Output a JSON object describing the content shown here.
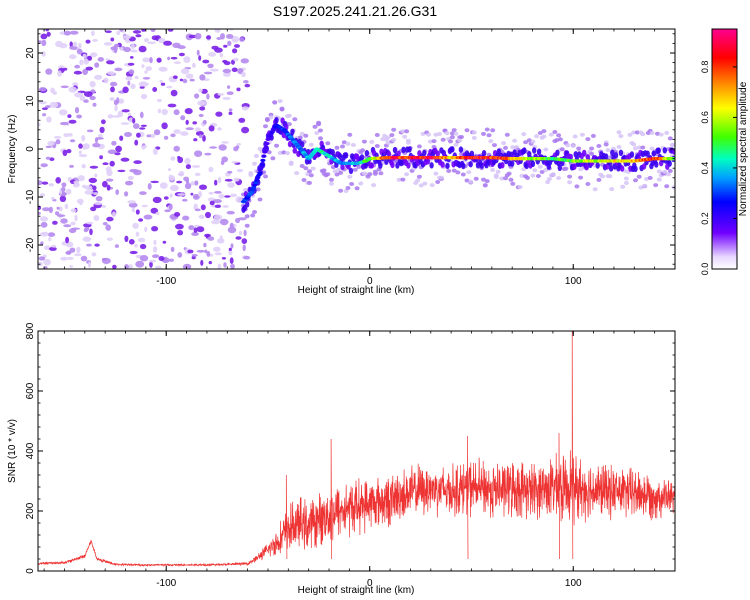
{
  "title": "S197.2025.241.21.26.G31",
  "chart_data": [
    {
      "type": "heatmap",
      "title": "S197.2025.241.21.26.G31",
      "xlabel": "Height of straight line (km)",
      "ylabel": "Frequency (Hz)",
      "xlim": [
        -163,
        150
      ],
      "ylim": [
        -25,
        25
      ],
      "x_ticks": [
        -100,
        0,
        100
      ],
      "y_ticks": [
        -20,
        -10,
        0,
        10,
        20
      ],
      "colorbar": {
        "label": "Normalized spectral amplitude",
        "range": [
          0,
          0.95
        ],
        "ticks": [
          0.0,
          0.2,
          0.4,
          0.6,
          0.8
        ],
        "colors": [
          "#ffffff",
          "#7000ff",
          "#0000ff",
          "#00c8ff",
          "#00ff80",
          "#80ff00",
          "#ffff00",
          "#ff8000",
          "#ff0000",
          "#ff00a0"
        ]
      },
      "noise_region_x": [
        -163,
        -60
      ],
      "ridge": {
        "x": [
          -62,
          -58,
          -54,
          -50,
          -46,
          -42,
          -38,
          -34,
          -30,
          -26,
          -22,
          -18,
          -14,
          -10,
          -6,
          -2,
          0,
          10,
          20,
          30,
          40,
          50,
          60,
          70,
          80,
          90,
          100,
          110,
          120,
          130,
          140,
          150
        ],
        "freq": [
          -11,
          -9,
          -5,
          2,
          5,
          4,
          2,
          0,
          -2,
          0,
          -1,
          -2,
          -3,
          -3,
          -3,
          -2.5,
          -2,
          -1.8,
          -1.8,
          -1.8,
          -1.8,
          -1.8,
          -1.8,
          -2,
          -2,
          -2,
          -2.5,
          -2.5,
          -2.5,
          -2.5,
          -2,
          -2
        ],
        "amplitude": [
          0.3,
          0.3,
          0.25,
          0.2,
          0.25,
          0.3,
          0.35,
          0.35,
          0.4,
          0.45,
          0.45,
          0.4,
          0.35,
          0.35,
          0.4,
          0.5,
          0.55,
          0.85,
          0.85,
          0.9,
          0.7,
          0.88,
          0.85,
          0.75,
          0.6,
          0.5,
          0.55,
          0.6,
          0.65,
          0.7,
          0.85,
          0.5
        ]
      }
    },
    {
      "type": "line",
      "xlabel": "Height of straight line (km)",
      "ylabel": "SNR (10 * v/v)",
      "xlim": [
        -163,
        150
      ],
      "ylim": [
        0,
        800
      ],
      "x_ticks": [
        -100,
        0,
        100
      ],
      "y_ticks": [
        0,
        200,
        400,
        600,
        800
      ],
      "color": "#ee3333",
      "series": [
        {
          "name": "SNR",
          "x": [
            -163,
            -150,
            -140,
            -137,
            -134,
            -125,
            -110,
            -90,
            -70,
            -60,
            -55,
            -50,
            -45,
            -40,
            -35,
            -30,
            -25,
            -20,
            -10,
            0,
            10,
            20,
            30,
            40,
            50,
            60,
            70,
            80,
            90,
            95,
            99,
            100,
            105,
            110,
            120,
            130,
            140,
            150
          ],
          "y": [
            25,
            28,
            50,
            100,
            40,
            22,
            20,
            20,
            22,
            25,
            45,
            70,
            100,
            140,
            160,
            150,
            170,
            190,
            210,
            225,
            235,
            265,
            275,
            270,
            280,
            270,
            275,
            268,
            280,
            270,
            300,
            270,
            275,
            270,
            265,
            260,
            250,
            245
          ],
          "spread": [
            5,
            5,
            8,
            10,
            6,
            4,
            4,
            4,
            4,
            6,
            15,
            30,
            60,
            90,
            100,
            100,
            100,
            110,
            110,
            100,
            100,
            100,
            100,
            100,
            110,
            110,
            110,
            110,
            120,
            130,
            140,
            130,
            120,
            110,
            100,
            100,
            90,
            60
          ],
          "peaks": [
            {
              "x": 99.5,
              "y": 800
            },
            {
              "x": -41,
              "y": 320
            },
            {
              "x": -19,
              "y": 440
            },
            {
              "x": 48,
              "y": 450
            },
            {
              "x": 93,
              "y": 460
            }
          ]
        }
      ]
    }
  ]
}
